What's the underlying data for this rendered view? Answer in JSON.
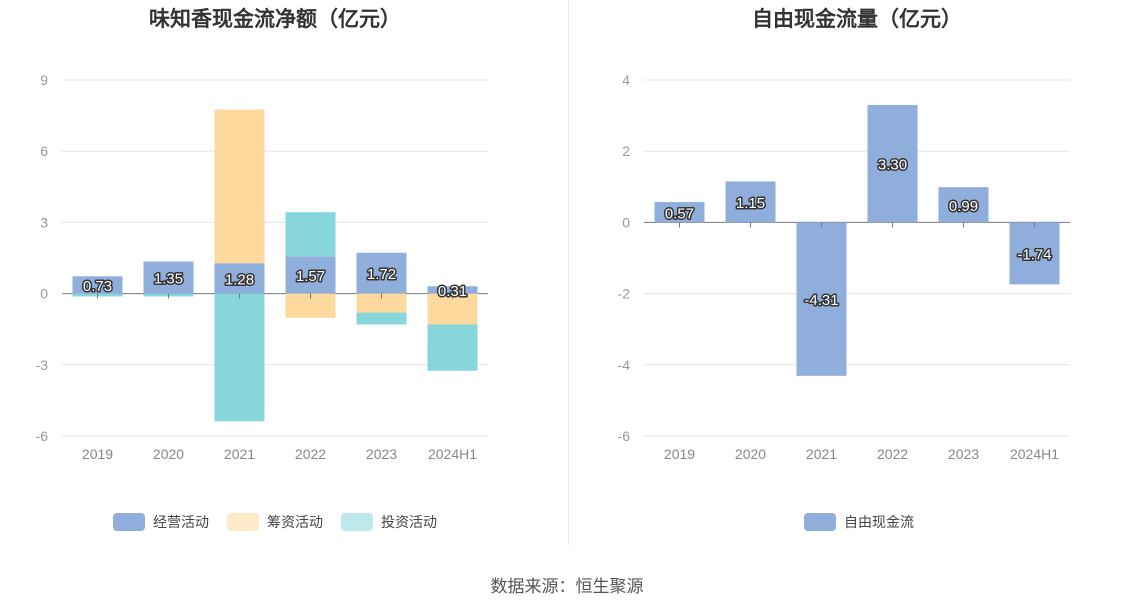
{
  "source": "数据来源：恒生聚源",
  "chart_data": [
    {
      "type": "bar",
      "title": "味知香现金流净额（亿元）",
      "categories": [
        "2019",
        "2020",
        "2021",
        "2022",
        "2023",
        "2024H1"
      ],
      "ylim": [
        -6,
        9
      ],
      "yticks": [
        9,
        6,
        3,
        0,
        -3,
        -6
      ],
      "stacked": true,
      "grid": true,
      "legend": "bottom",
      "series": [
        {
          "name": "经营活动",
          "color": "#8faedc",
          "values": [
            0.73,
            1.35,
            1.28,
            1.57,
            1.72,
            0.31
          ],
          "labels": [
            "0.73",
            "1.35",
            "1.28",
            "1.57",
            "1.72",
            "0.31"
          ]
        },
        {
          "name": "筹资活动",
          "color": "#fdd99d",
          "values": [
            0,
            0,
            6.47,
            -1.02,
            -0.8,
            -1.3
          ]
        },
        {
          "name": "投资活动",
          "color": "#86d6dc",
          "values": [
            -0.12,
            -0.12,
            -5.38,
            1.86,
            -0.5,
            -1.95
          ]
        }
      ]
    },
    {
      "type": "bar",
      "title": "自由现金流量（亿元）",
      "categories": [
        "2019",
        "2020",
        "2021",
        "2022",
        "2023",
        "2024H1"
      ],
      "ylim": [
        -6,
        4
      ],
      "yticks": [
        4,
        2,
        0,
        -2,
        -4,
        -6
      ],
      "stacked": false,
      "grid": true,
      "legend": "bottom",
      "series": [
        {
          "name": "自由现金流",
          "color": "#8faedc",
          "values": [
            0.57,
            1.15,
            -4.31,
            3.3,
            0.99,
            -1.74
          ],
          "labels": [
            "0.57",
            "1.15",
            "-4.31",
            "3.30",
            "0.99",
            "-1.74"
          ]
        }
      ]
    }
  ]
}
